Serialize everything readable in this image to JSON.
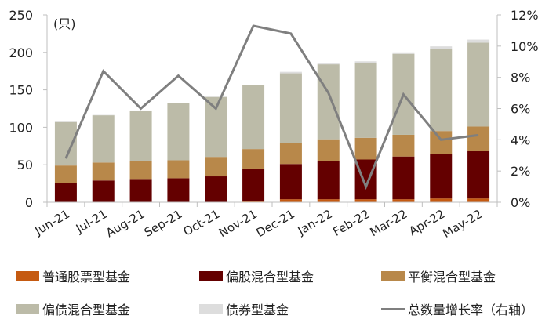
{
  "chart_data": {
    "type": "bar",
    "stacked": true,
    "title": "",
    "ylabel": "(只)",
    "xlabel": "",
    "ylim": [
      0,
      250
    ],
    "y_ticks": [
      "0",
      "50",
      "100",
      "150",
      "200",
      "250"
    ],
    "y2lim": [
      0,
      0.12
    ],
    "y2_ticks": [
      "0%",
      "2%",
      "4%",
      "6%",
      "8%",
      "10%",
      "12%"
    ],
    "grid": false,
    "legend_position": "bottom",
    "categories": [
      "Jun-21",
      "Jul-21",
      "Aug-21",
      "Sep-21",
      "Oct-21",
      "Nov-21",
      "Dec-21",
      "Jan-22",
      "Feb-22",
      "Mar-22",
      "Apr-22",
      "May-22"
    ],
    "series": [
      {
        "name": "普通股票型基金",
        "type": "bar",
        "color": "#C55A11",
        "values": [
          0.5,
          0.5,
          0.5,
          0.5,
          0.5,
          1,
          4,
          4,
          4,
          4,
          5,
          5
        ]
      },
      {
        "name": "偏股混合型基金",
        "type": "bar",
        "color": "#640000",
        "values": [
          25.5,
          28.5,
          30.5,
          31.5,
          34,
          44,
          47,
          51,
          53,
          57,
          59,
          63
        ]
      },
      {
        "name": "平衡混合型基金",
        "type": "bar",
        "color": "#B8884A",
        "values": [
          23,
          24,
          24,
          24,
          26,
          26,
          28,
          29,
          29,
          29,
          31,
          33
        ]
      },
      {
        "name": "偏债混合型基金",
        "type": "bar",
        "color": "#BCBBA8",
        "values": [
          58,
          63,
          67,
          76,
          80,
          85,
          93,
          100,
          100,
          108,
          110,
          112
        ]
      },
      {
        "name": "债券型基金",
        "type": "bar",
        "color": "#DDDDDD",
        "values": [
          0.5,
          0.5,
          0.5,
          0.5,
          0.5,
          0.5,
          2,
          1,
          2,
          2,
          3,
          4
        ]
      },
      {
        "name": "总数量增长率（右轴）",
        "type": "line",
        "axis": "right",
        "color": "#7F7F7F",
        "values": [
          0.028,
          0.084,
          0.06,
          0.081,
          0.06,
          0.113,
          0.108,
          0.07,
          0.01,
          0.069,
          0.04,
          0.043
        ]
      }
    ]
  },
  "legend": {
    "items": [
      {
        "label": "普通股票型基金",
        "color": "#C55A11",
        "kind": "box"
      },
      {
        "label": "偏股混合型基金",
        "color": "#640000",
        "kind": "box"
      },
      {
        "label": "平衡混合型基金",
        "color": "#B8884A",
        "kind": "box"
      },
      {
        "label": "偏债混合型基金",
        "color": "#BCBBA8",
        "kind": "box"
      },
      {
        "label": "债券型基金",
        "color": "#DDDDDD",
        "kind": "box"
      },
      {
        "label": "总数量增长率（右轴）",
        "color": "#7F7F7F",
        "kind": "line"
      }
    ]
  }
}
